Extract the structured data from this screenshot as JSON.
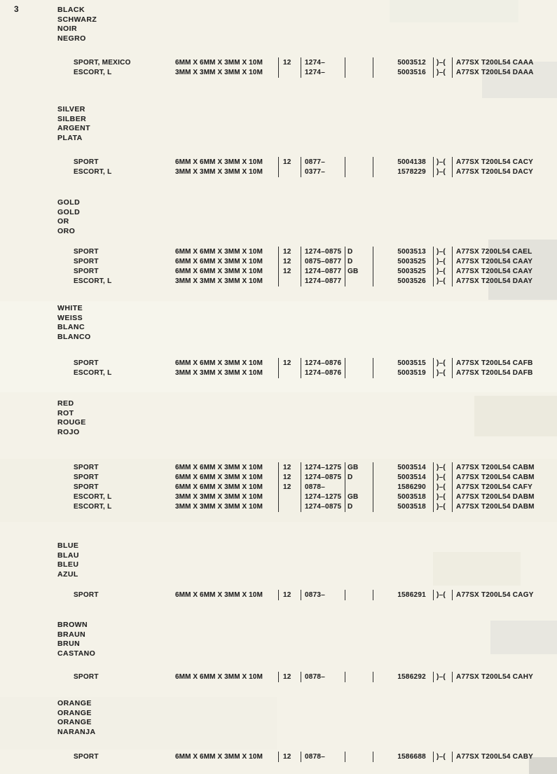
{
  "page_number": "3",
  "sections": [
    {
      "names": [
        "BLACK",
        "SCHWARZ",
        "NOIR",
        "NEGRO"
      ],
      "rows": [
        {
          "model": "SPORT, MEXICO",
          "size": "6MM X 6MM X 3MM X 10M",
          "qty": "12",
          "range": "1274–",
          "code": "",
          "service": "5003512",
          "paren": ")–(",
          "part": "A77SX T200L54 CAAA"
        },
        {
          "model": "ESCORT, L",
          "size": "3MM X 3MM X 3MM X 10M",
          "qty": "",
          "range": "1274–",
          "code": "",
          "service": "5003516",
          "paren": ")–(",
          "part": "A77SX T200L54 DAAA"
        }
      ]
    },
    {
      "names": [
        "SILVER",
        "SILBER",
        "ARGENT",
        "PLATA"
      ],
      "rows": [
        {
          "model": "SPORT",
          "size": "6MM X 6MM X 3MM X 10M",
          "qty": "12",
          "range": "0877–",
          "code": "",
          "service": "5004138",
          "paren": ")–(",
          "part": "A77SX T200L54 CACY"
        },
        {
          "model": "ESCORT, L",
          "size": "3MM X 3MM X 3MM X 10M",
          "qty": "",
          "range": "0377–",
          "code": "",
          "service": "1578229",
          "paren": ")–(",
          "part": "A77SX T200L54 DACY"
        }
      ]
    },
    {
      "names": [
        "GOLD",
        "GOLD",
        "OR",
        "ORO"
      ],
      "rows": [
        {
          "model": "SPORT",
          "size": "6MM X 6MM X 3MM X 10M",
          "qty": "12",
          "range": "1274–0875",
          "code": "D",
          "service": "5003513",
          "paren": ")–(",
          "part": "A77SX 7200L54 CAEL"
        },
        {
          "model": "SPORT",
          "size": "6MM X 6MM X 3MM X 10M",
          "qty": "12",
          "range": "0875–0877",
          "code": "D",
          "service": "5003525",
          "paren": ")–(",
          "part": "A77SX T200L54 CAAY"
        },
        {
          "model": "SPORT",
          "size": "6MM X 6MM X 3MM X 10M",
          "qty": "12",
          "range": "1274–0877",
          "code": "GB",
          "service": "5003525",
          "paren": ")–(",
          "part": "A77SX T200L54 CAAY"
        },
        {
          "model": "ESCORT, L",
          "size": "3MM X 3MM X 3MM X 10M",
          "qty": "",
          "range": "1274–0877",
          "code": "",
          "service": "5003526",
          "paren": ")–(",
          "part": "A77SX T200L54 DAAY"
        }
      ]
    },
    {
      "names": [
        "WHITE",
        "WEISS",
        "BLANC",
        "BLANCO"
      ],
      "rows": [
        {
          "model": "SPORT",
          "size": "6MM X 6MM X 3MM X 10M",
          "qty": "12",
          "range": "1274–0876",
          "code": "",
          "service": "5003515",
          "paren": ")–(",
          "part": "A77SX T200L54 CAFB"
        },
        {
          "model": "ESCORT, L",
          "size": "3MM X 3MM X 3MM X 10M",
          "qty": "",
          "range": "1274–0876",
          "code": "",
          "service": "5003519",
          "paren": ")–(",
          "part": "A77SX T200L54 DAFB"
        }
      ]
    },
    {
      "names": [
        "RED",
        "ROT",
        "ROUGE",
        "ROJO"
      ],
      "rows": [
        {
          "model": "SPORT",
          "size": "6MM X 6MM X 3MM X 10M",
          "qty": "12",
          "range": "1274–1275",
          "code": "GB",
          "service": "5003514",
          "paren": ")–(",
          "part": "A77SX T200L54 CABM"
        },
        {
          "model": "SPORT",
          "size": "6MM X 6MM X 3MM X 10M",
          "qty": "12",
          "range": "1274–0875",
          "code": "D",
          "service": "5003514",
          "paren": ")–(",
          "part": "A77SX T200L54 CABM"
        },
        {
          "model": "SPORT",
          "size": "6MM X 6MM X 3MM X 10M",
          "qty": "12",
          "range": "0878–",
          "code": "",
          "service": "1586290",
          "paren": ")–(",
          "part": "A77SX T200L54 CAFY"
        },
        {
          "model": "ESCORT, L",
          "size": "3MM X 3MM X 3MM X 10M",
          "qty": "",
          "range": "1274–1275",
          "code": "GB",
          "service": "5003518",
          "paren": ")–(",
          "part": "A77SX T200L54 DABM"
        },
        {
          "model": "ESCORT, L",
          "size": "3MM X 3MM X 3MM X 10M",
          "qty": "",
          "range": "1274–0875",
          "code": "D",
          "service": "5003518",
          "paren": ")–(",
          "part": "A77SX T200L54 DABM"
        }
      ]
    },
    {
      "names": [
        "BLUE",
        "BLAU",
        "BLEU",
        "AZUL"
      ],
      "rows": [
        {
          "model": "SPORT",
          "size": "6MM X 6MM X 3MM X 10M",
          "qty": "12",
          "range": "0873–",
          "code": "",
          "service": "1586291",
          "paren": ")–(",
          "part": "A77SX T200L54 CAGY"
        }
      ]
    },
    {
      "names": [
        "BROWN",
        "BRAUN",
        "BRUN",
        "CASTANO"
      ],
      "rows": [
        {
          "model": "SPORT",
          "size": "6MM X 6MM X 3MM X 10M",
          "qty": "12",
          "range": "0878–",
          "code": "",
          "service": "1586292",
          "paren": ")–(",
          "part": "A77SX T200L54 CAHY"
        }
      ]
    },
    {
      "names": [
        "ORANGE",
        "ORANGE",
        "ORANGE",
        "NARANJA"
      ],
      "rows": [
        {
          "model": "SPORT",
          "size": "6MM X 6MM X 3MM X 10M",
          "qty": "12",
          "range": "0878–",
          "code": "",
          "service": "1586688",
          "paren": ")–(",
          "part": "A77SX T200L54 CABY"
        }
      ]
    }
  ]
}
